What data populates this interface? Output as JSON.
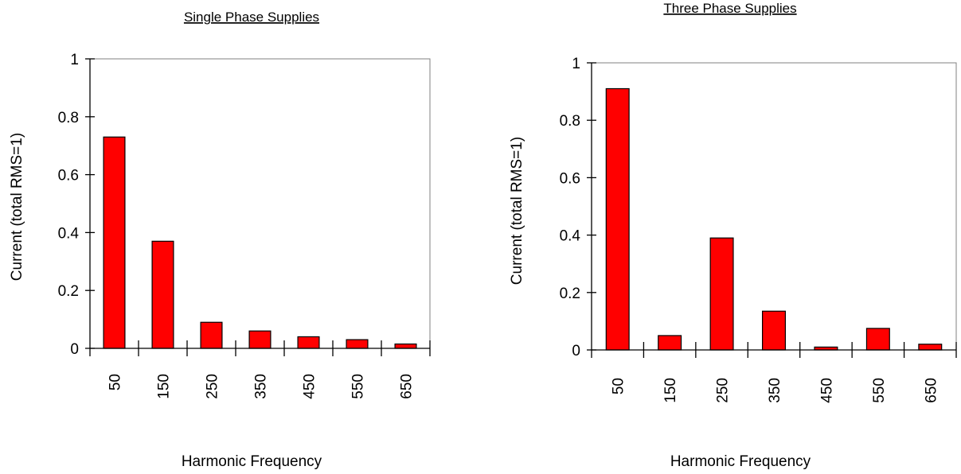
{
  "chart_data": [
    {
      "type": "bar",
      "title": "Single Phase Supplies",
      "xlabel": "Harmonic Frequency",
      "ylabel": "Current (total RMS=1)",
      "categories": [
        "50",
        "150",
        "250",
        "350",
        "450",
        "550",
        "650"
      ],
      "values": [
        0.73,
        0.37,
        0.09,
        0.06,
        0.04,
        0.03,
        0.015
      ],
      "ylim": [
        0,
        1
      ],
      "yticks": [
        "0",
        "0.2",
        "0.4",
        "0.6",
        "0.8",
        "1"
      ],
      "bar_color": "#ff0000",
      "grid": false
    },
    {
      "type": "bar",
      "title": "Three Phase Supplies",
      "xlabel": "Harmonic Frequency",
      "ylabel": "Current (total RMS=1)",
      "categories": [
        "50",
        "150",
        "250",
        "350",
        "450",
        "550",
        "650"
      ],
      "values": [
        0.91,
        0.05,
        0.39,
        0.135,
        0.01,
        0.075,
        0.02
      ],
      "ylim": [
        0,
        1
      ],
      "yticks": [
        "0",
        "0.2",
        "0.4",
        "0.6",
        "0.8",
        "1"
      ],
      "bar_color": "#ff0000",
      "grid": false
    }
  ]
}
